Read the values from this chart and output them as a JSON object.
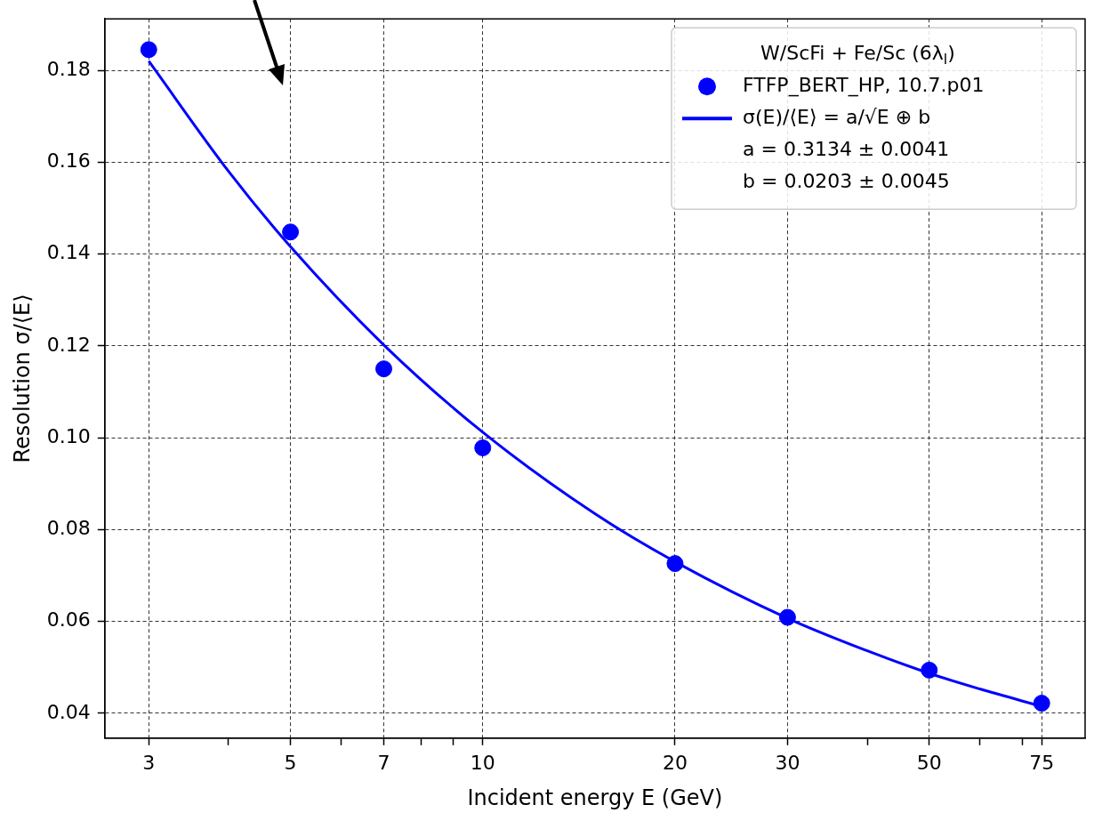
{
  "chart_data": {
    "type": "scatter",
    "xlabel": "Incident energy E (GeV)",
    "ylabel": "Resolution σ/⟨E⟩",
    "legend_title": "W/ScFi + Fe/Sc (6λ$_{I}$)",
    "log": "x",
    "grid": true,
    "legend": "top right",
    "marker": "circle",
    "xlim": [
      2.56,
      87.7
    ],
    "xticks": [
      3,
      {
        "value": 4,
        "label": null
      },
      5,
      {
        "value": 6,
        "label": null
      },
      7,
      {
        "value": 8,
        "label": null
      },
      {
        "value": 9,
        "label": null
      },
      10,
      20,
      30,
      {
        "value": 40,
        "label": null
      },
      50,
      {
        "value": 60,
        "label": null
      },
      {
        "value": 70,
        "label": null
      },
      75
    ],
    "ylim": [
      0.0346,
      0.1912
    ],
    "yticks": [
      {
        "value": 0.04,
        "label": "0.04"
      },
      {
        "value": 0.06,
        "label": "0.06"
      },
      {
        "value": 0.08,
        "label": "0.08"
      },
      {
        "value": 0.1,
        "label": "0.10"
      },
      {
        "value": 0.12,
        "label": "0.12"
      },
      {
        "value": 0.14,
        "label": "0.14"
      },
      {
        "value": 0.16,
        "label": "0.16"
      },
      {
        "value": 0.18,
        "label": "0.18"
      }
    ],
    "annotations": [
      "a = 0.3134 ± 0.0041",
      "b = 0.0203 ± 0.0045"
    ],
    "series": [
      {
        "name": "FTFP_BERT_HP, 10.7.p01",
        "color": "#0000ff",
        "x": [
          3,
          5,
          7,
          10,
          20,
          30,
          50,
          75
        ],
        "values": [
          0.1845,
          0.1448,
          0.115,
          0.0978,
          0.0726,
          0.0609,
          0.0494,
          0.0422
        ]
      },
      {
        "name": "σ(E)/⟨E⟩ = a/√E ⊕ b",
        "type": "line",
        "color": "#0000ff",
        "marker": "none",
        "x": [
          3,
          4,
          5,
          7,
          10,
          15,
          20,
          30,
          40,
          50,
          60,
          75
        ],
        "values": [
          0.182,
          0.158,
          0.1416,
          0.1202,
          0.1012,
          0.0834,
          0.073,
          0.0607,
          0.0536,
          0.0487,
          0.0453,
          0.0415
        ]
      }
    ]
  }
}
